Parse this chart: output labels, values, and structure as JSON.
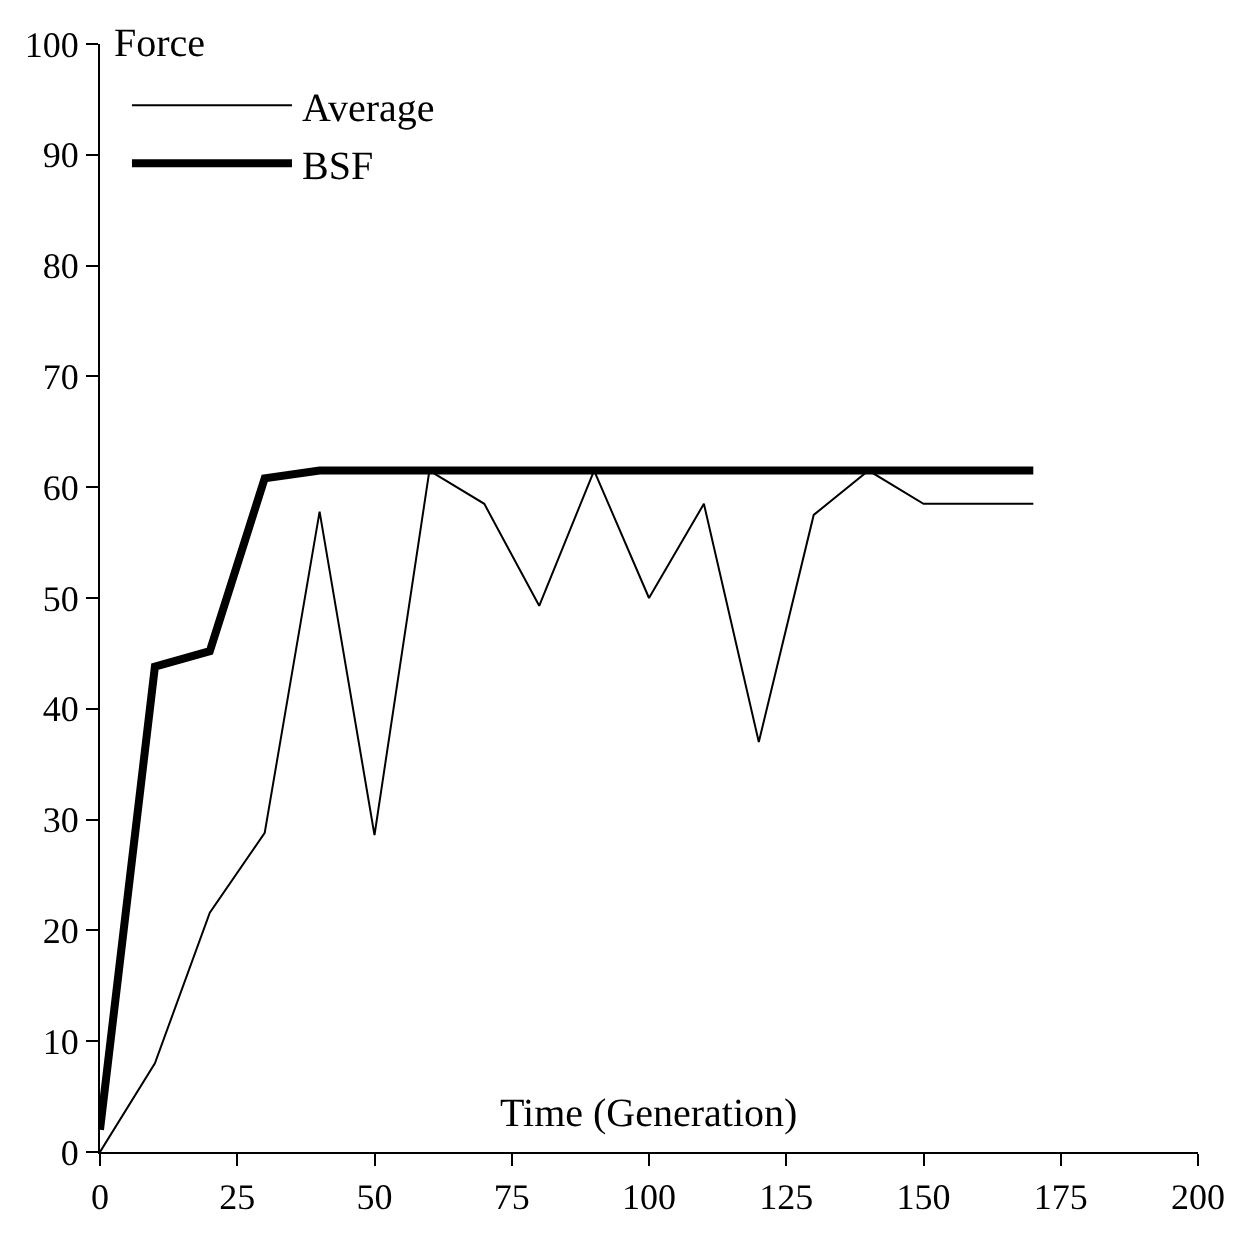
{
  "chart_data": {
    "type": "line",
    "xlabel": "Time (Generation)",
    "ylabel": "Force",
    "x": [
      0,
      10,
      20,
      30,
      40,
      50,
      60,
      70,
      80,
      90,
      100,
      110,
      120,
      130,
      140,
      150,
      160,
      170
    ],
    "series": [
      {
        "name": "Average",
        "color": "#000000",
        "values": [
          0,
          8,
          21.6,
          28.8,
          57.8,
          28.6,
          61.5,
          58.5,
          49.3,
          61.5,
          50,
          58.5,
          37,
          57.5,
          61.5,
          58.5,
          58.5,
          58.5
        ]
      },
      {
        "name": "BSF",
        "color": "#000000",
        "values": [
          2,
          43.8,
          45.2,
          60.8,
          61.5,
          61.5,
          61.5,
          61.5,
          61.5,
          61.5,
          61.5,
          61.5,
          61.5,
          61.5,
          61.5,
          61.5,
          61.5,
          61.5
        ]
      }
    ],
    "xlim": [
      0,
      200
    ],
    "xticks": [
      0,
      25,
      50,
      75,
      100,
      125,
      150,
      175,
      200
    ],
    "ylim": [
      0,
      100
    ],
    "yticks": [
      0,
      10,
      20,
      30,
      40,
      50,
      60,
      70,
      80,
      90,
      100
    ],
    "legend": "top left",
    "marker": "none",
    "line_style": "solid"
  }
}
